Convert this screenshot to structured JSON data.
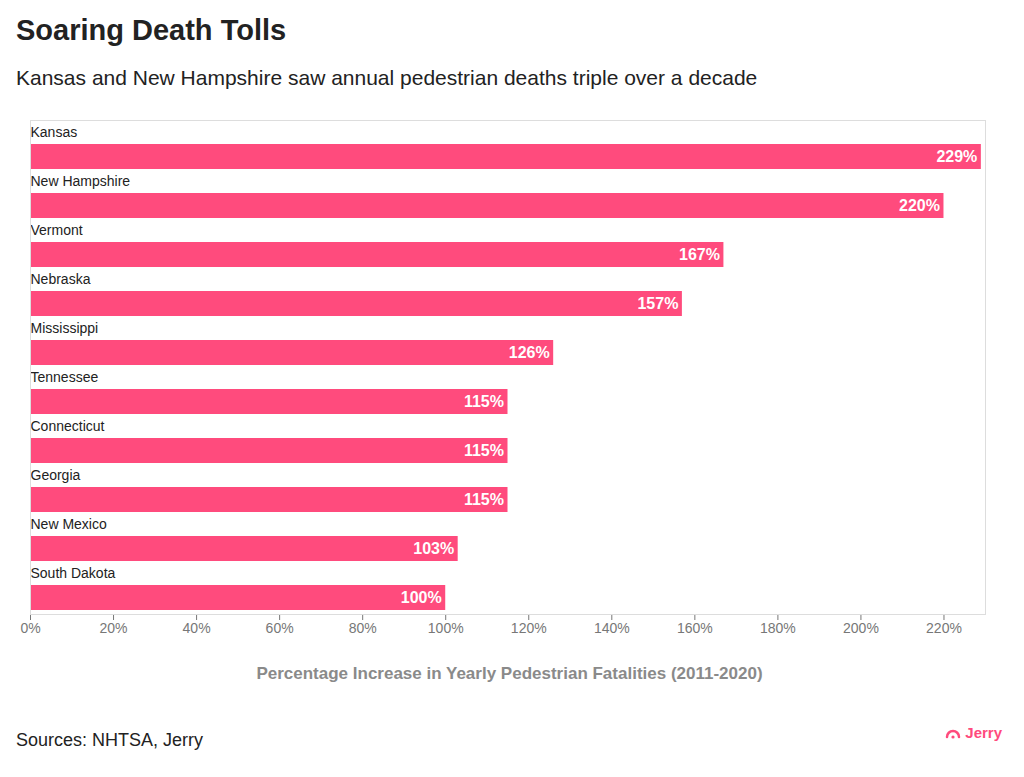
{
  "chart_data": {
    "type": "bar",
    "orientation": "horizontal",
    "title": "Soaring Death Tolls",
    "subtitle": "Kansas and New Hampshire saw annual pedestrian deaths triple over a decade",
    "x_label": "Percentage Increase in Yearly Pedestrian Fatalities (2011-2020)",
    "source": "Sources: NHTSA, Jerry",
    "brand": "Jerry",
    "categories": [
      "Kansas",
      "New Hampshire",
      "Vermont",
      "Nebraska",
      "Mississippi",
      "Tennessee",
      "Connecticut",
      "Georgia",
      "New Mexico",
      "South Dakota"
    ],
    "values": [
      229,
      220,
      167,
      157,
      126,
      115,
      115,
      115,
      103,
      100
    ],
    "value_labels": [
      "229%",
      "220%",
      "167%",
      "157%",
      "126%",
      "115%",
      "115%",
      "115%",
      "103%",
      "100%"
    ],
    "color": "#ff4b7d",
    "xlim": [
      0,
      230
    ],
    "xticks": [
      {
        "value": 0,
        "label": "0%"
      },
      {
        "value": 20,
        "label": "20%"
      },
      {
        "value": 40,
        "label": "40%"
      },
      {
        "value": 60,
        "label": "60%"
      },
      {
        "value": 80,
        "label": "80%"
      },
      {
        "value": 100,
        "label": "100%"
      },
      {
        "value": 120,
        "label": "120%"
      },
      {
        "value": 140,
        "label": "140%"
      },
      {
        "value": 160,
        "label": "160%"
      },
      {
        "value": 180,
        "label": "180%"
      },
      {
        "value": 200,
        "label": "200%"
      },
      {
        "value": 220,
        "label": "220%"
      }
    ],
    "grid": false,
    "data_labels": true
  }
}
